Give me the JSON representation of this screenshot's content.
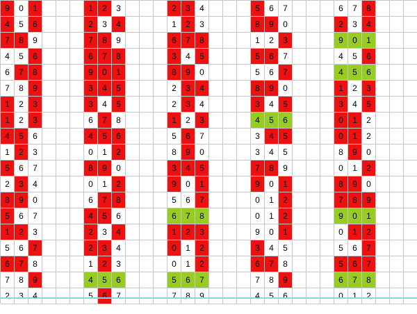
{
  "colors": {
    "red": "#ee1111",
    "green": "#99cc22",
    "grid_line": "#c8c8c8"
  },
  "blocks": [
    {
      "rows": [
        {
          "digits": [
            "9",
            "0",
            "1"
          ],
          "marks": [
            "r",
            "w",
            "r"
          ]
        },
        {
          "digits": [
            "4",
            "5",
            "6"
          ],
          "marks": [
            "r",
            "w",
            "r"
          ]
        },
        {
          "digits": [
            "7",
            "8",
            "9"
          ],
          "marks": [
            "r",
            "r",
            "w"
          ]
        },
        {
          "digits": [
            "4",
            "5",
            "6"
          ],
          "marks": [
            "w",
            "w",
            "r"
          ]
        },
        {
          "digits": [
            "6",
            "7",
            "8"
          ],
          "marks": [
            "w",
            "r",
            "r"
          ]
        },
        {
          "digits": [
            "7",
            "8",
            "9"
          ],
          "marks": [
            "w",
            "w",
            "r"
          ]
        },
        {
          "digits": [
            "1",
            "2",
            "3"
          ],
          "marks": [
            "r",
            "w",
            "r"
          ]
        },
        {
          "digits": [
            "1",
            "2",
            "3"
          ],
          "marks": [
            "r",
            "w",
            "r"
          ]
        },
        {
          "digits": [
            "4",
            "5",
            "6"
          ],
          "marks": [
            "r",
            "r",
            "w"
          ]
        },
        {
          "digits": [
            "1",
            "2",
            "3"
          ],
          "marks": [
            "w",
            "r",
            "w"
          ]
        },
        {
          "digits": [
            "5",
            "6",
            "7"
          ],
          "marks": [
            "r",
            "w",
            "w"
          ]
        },
        {
          "digits": [
            "2",
            "3",
            "4"
          ],
          "marks": [
            "w",
            "r",
            "w"
          ]
        },
        {
          "digits": [
            "8",
            "9",
            "0"
          ],
          "marks": [
            "r",
            "r",
            "w"
          ]
        },
        {
          "digits": [
            "5",
            "6",
            "7"
          ],
          "marks": [
            "r",
            "w",
            "w"
          ]
        },
        {
          "digits": [
            "1",
            "2",
            "3"
          ],
          "marks": [
            "r",
            "r",
            "w"
          ]
        },
        {
          "digits": [
            "5",
            "6",
            "7"
          ],
          "marks": [
            "w",
            "w",
            "r"
          ]
        },
        {
          "digits": [
            "6",
            "7",
            "8"
          ],
          "marks": [
            "r",
            "r",
            "w"
          ]
        },
        {
          "digits": [
            "7",
            "8",
            "9"
          ],
          "marks": [
            "w",
            "w",
            "r"
          ]
        },
        {
          "digits": [
            "2",
            "3",
            "4"
          ],
          "marks": [
            "w",
            "w",
            "w"
          ]
        }
      ]
    },
    {
      "rows": [
        {
          "digits": [
            "1",
            "2",
            "3"
          ],
          "marks": [
            "r",
            "r",
            "w"
          ]
        },
        {
          "digits": [
            "2",
            "3",
            "4"
          ],
          "marks": [
            "r",
            "w",
            "r"
          ]
        },
        {
          "digits": [
            "7",
            "8",
            "9"
          ],
          "marks": [
            "r",
            "r",
            "w"
          ]
        },
        {
          "digits": [
            "6",
            "7",
            "8"
          ],
          "marks": [
            "r",
            "r",
            "r"
          ]
        },
        {
          "digits": [
            "9",
            "0",
            "1"
          ],
          "marks": [
            "r",
            "r",
            "r"
          ]
        },
        {
          "digits": [
            "3",
            "4",
            "5"
          ],
          "marks": [
            "r",
            "r",
            "r"
          ]
        },
        {
          "digits": [
            "3",
            "4",
            "5"
          ],
          "marks": [
            "r",
            "w",
            "r"
          ]
        },
        {
          "digits": [
            "6",
            "7",
            "8"
          ],
          "marks": [
            "w",
            "r",
            "w"
          ]
        },
        {
          "digits": [
            "4",
            "5",
            "6"
          ],
          "marks": [
            "r",
            "r",
            "r"
          ]
        },
        {
          "digits": [
            "0",
            "1",
            "2"
          ],
          "marks": [
            "w",
            "w",
            "r"
          ]
        },
        {
          "digits": [
            "8",
            "9",
            "0"
          ],
          "marks": [
            "r",
            "r",
            "w"
          ]
        },
        {
          "digits": [
            "0",
            "1",
            "2"
          ],
          "marks": [
            "w",
            "w",
            "r"
          ]
        },
        {
          "digits": [
            "6",
            "7",
            "8"
          ],
          "marks": [
            "w",
            "r",
            "r"
          ]
        },
        {
          "digits": [
            "4",
            "5",
            "6"
          ],
          "marks": [
            "r",
            "r",
            "w"
          ]
        },
        {
          "digits": [
            "2",
            "3",
            "4"
          ],
          "marks": [
            "r",
            "w",
            "r"
          ]
        },
        {
          "digits": [
            "2",
            "3",
            "4"
          ],
          "marks": [
            "r",
            "r",
            "w"
          ]
        },
        {
          "digits": [
            "1",
            "2",
            "3"
          ],
          "marks": [
            "w",
            "r",
            "w"
          ]
        },
        {
          "digits": [
            "4",
            "5",
            "6"
          ],
          "marks": [
            "g",
            "g",
            "g"
          ]
        },
        {
          "digits": [
            "5",
            "6",
            "7"
          ],
          "marks": [
            "w",
            "r",
            "w"
          ]
        }
      ]
    },
    {
      "rows": [
        {
          "digits": [
            "2",
            "3",
            "4"
          ],
          "marks": [
            "r",
            "r",
            "w"
          ]
        },
        {
          "digits": [
            "1",
            "2",
            "3"
          ],
          "marks": [
            "w",
            "r",
            "w"
          ]
        },
        {
          "digits": [
            "6",
            "7",
            "8"
          ],
          "marks": [
            "r",
            "r",
            "r"
          ]
        },
        {
          "digits": [
            "3",
            "4",
            "5"
          ],
          "marks": [
            "r",
            "w",
            "r"
          ]
        },
        {
          "digits": [
            "8",
            "9",
            "0"
          ],
          "marks": [
            "r",
            "r",
            "w"
          ]
        },
        {
          "digits": [
            "2",
            "3",
            "4"
          ],
          "marks": [
            "w",
            "r",
            "r"
          ]
        },
        {
          "digits": [
            "2",
            "3",
            "4"
          ],
          "marks": [
            "w",
            "r",
            "w"
          ]
        },
        {
          "digits": [
            "1",
            "2",
            "3"
          ],
          "marks": [
            "r",
            "w",
            "r"
          ]
        },
        {
          "digits": [
            "5",
            "6",
            "7"
          ],
          "marks": [
            "w",
            "r",
            "w"
          ]
        },
        {
          "digits": [
            "8",
            "9",
            "0"
          ],
          "marks": [
            "w",
            "r",
            "w"
          ]
        },
        {
          "digits": [
            "3",
            "4",
            "5"
          ],
          "marks": [
            "r",
            "r",
            "r"
          ]
        },
        {
          "digits": [
            "9",
            "0",
            "1"
          ],
          "marks": [
            "r",
            "w",
            "r"
          ]
        },
        {
          "digits": [
            "5",
            "6",
            "7"
          ],
          "marks": [
            "w",
            "w",
            "r"
          ]
        },
        {
          "digits": [
            "6",
            "7",
            "8"
          ],
          "marks": [
            "g",
            "g",
            "g"
          ]
        },
        {
          "digits": [
            "1",
            "2",
            "3"
          ],
          "marks": [
            "r",
            "r",
            "r"
          ]
        },
        {
          "digits": [
            "0",
            "1",
            "2"
          ],
          "marks": [
            "r",
            "w",
            "r"
          ]
        },
        {
          "digits": [
            "0",
            "1",
            "2"
          ],
          "marks": [
            "w",
            "w",
            "r"
          ]
        },
        {
          "digits": [
            "5",
            "6",
            "7"
          ],
          "marks": [
            "g",
            "g",
            "g"
          ]
        },
        {
          "digits": [
            "7",
            "8",
            "9"
          ],
          "marks": [
            "w",
            "w",
            "w"
          ]
        }
      ]
    },
    {
      "rows": [
        {
          "digits": [
            "5",
            "6",
            "7"
          ],
          "marks": [
            "r",
            "w",
            "w"
          ]
        },
        {
          "digits": [
            "8",
            "9",
            "0"
          ],
          "marks": [
            "r",
            "r",
            "w"
          ]
        },
        {
          "digits": [
            "1",
            "2",
            "3"
          ],
          "marks": [
            "w",
            "w",
            "r"
          ]
        },
        {
          "digits": [
            "5",
            "6",
            "7"
          ],
          "marks": [
            "r",
            "r",
            "w"
          ]
        },
        {
          "digits": [
            "5",
            "6",
            "7"
          ],
          "marks": [
            "w",
            "w",
            "r"
          ]
        },
        {
          "digits": [
            "8",
            "9",
            "0"
          ],
          "marks": [
            "r",
            "r",
            "w"
          ]
        },
        {
          "digits": [
            "3",
            "4",
            "5"
          ],
          "marks": [
            "r",
            "w",
            "r"
          ]
        },
        {
          "digits": [
            "4",
            "5",
            "6"
          ],
          "marks": [
            "g",
            "g",
            "g"
          ]
        },
        {
          "digits": [
            "3",
            "4",
            "5"
          ],
          "marks": [
            "w",
            "r",
            "r"
          ]
        },
        {
          "digits": [
            "3",
            "4",
            "5"
          ],
          "marks": [
            "w",
            "w",
            "w"
          ]
        },
        {
          "digits": [
            "7",
            "8",
            "9"
          ],
          "marks": [
            "r",
            "r",
            "w"
          ]
        },
        {
          "digits": [
            "9",
            "0",
            "1"
          ],
          "marks": [
            "r",
            "w",
            "r"
          ]
        },
        {
          "digits": [
            "0",
            "1",
            "2"
          ],
          "marks": [
            "w",
            "w",
            "r"
          ]
        },
        {
          "digits": [
            "0",
            "1",
            "2"
          ],
          "marks": [
            "w",
            "w",
            "r"
          ]
        },
        {
          "digits": [
            "9",
            "0",
            "1"
          ],
          "marks": [
            "w",
            "w",
            "r"
          ]
        },
        {
          "digits": [
            "3",
            "4",
            "5"
          ],
          "marks": [
            "r",
            "w",
            "w"
          ]
        },
        {
          "digits": [
            "6",
            "7",
            "8"
          ],
          "marks": [
            "r",
            "r",
            "w"
          ]
        },
        {
          "digits": [
            "7",
            "8",
            "9"
          ],
          "marks": [
            "w",
            "w",
            "r"
          ]
        },
        {
          "digits": [
            "4",
            "5",
            "6"
          ],
          "marks": [
            "w",
            "w",
            "w"
          ]
        }
      ]
    },
    {
      "rows": [
        {
          "digits": [
            "6",
            "7",
            "8"
          ],
          "marks": [
            "w",
            "w",
            "r"
          ]
        },
        {
          "digits": [
            "2",
            "3",
            "4"
          ],
          "marks": [
            "r",
            "w",
            "r"
          ]
        },
        {
          "digits": [
            "9",
            "0",
            "1"
          ],
          "marks": [
            "g",
            "g",
            "g"
          ]
        },
        {
          "digits": [
            "4",
            "5",
            "6"
          ],
          "marks": [
            "w",
            "w",
            "r"
          ]
        },
        {
          "digits": [
            "4",
            "5",
            "6"
          ],
          "marks": [
            "g",
            "g",
            "g"
          ]
        },
        {
          "digits": [
            "1",
            "2",
            "3"
          ],
          "marks": [
            "r",
            "w",
            "r"
          ]
        },
        {
          "digits": [
            "3",
            "4",
            "5"
          ],
          "marks": [
            "r",
            "w",
            "r"
          ]
        },
        {
          "digits": [
            "0",
            "1",
            "2"
          ],
          "marks": [
            "r",
            "r",
            "w"
          ]
        },
        {
          "digits": [
            "0",
            "1",
            "2"
          ],
          "marks": [
            "r",
            "r",
            "w"
          ]
        },
        {
          "digits": [
            "8",
            "9",
            "0"
          ],
          "marks": [
            "w",
            "r",
            "w"
          ]
        },
        {
          "digits": [
            "0",
            "1",
            "2"
          ],
          "marks": [
            "w",
            "w",
            "r"
          ]
        },
        {
          "digits": [
            "8",
            "9",
            "0"
          ],
          "marks": [
            "r",
            "r",
            "w"
          ]
        },
        {
          "digits": [
            "7",
            "8",
            "9"
          ],
          "marks": [
            "r",
            "r",
            "r"
          ]
        },
        {
          "digits": [
            "9",
            "0",
            "1"
          ],
          "marks": [
            "g",
            "g",
            "g"
          ]
        },
        {
          "digits": [
            "0",
            "1",
            "2"
          ],
          "marks": [
            "w",
            "r",
            "r"
          ]
        },
        {
          "digits": [
            "5",
            "6",
            "7"
          ],
          "marks": [
            "w",
            "w",
            "r"
          ]
        },
        {
          "digits": [
            "5",
            "6",
            "7"
          ],
          "marks": [
            "r",
            "r",
            "r"
          ]
        },
        {
          "digits": [
            "6",
            "7",
            "8"
          ],
          "marks": [
            "g",
            "g",
            "g"
          ]
        },
        {
          "digits": [
            "0",
            "1",
            "2"
          ],
          "marks": [
            "w",
            "w",
            "w"
          ]
        }
      ]
    }
  ]
}
